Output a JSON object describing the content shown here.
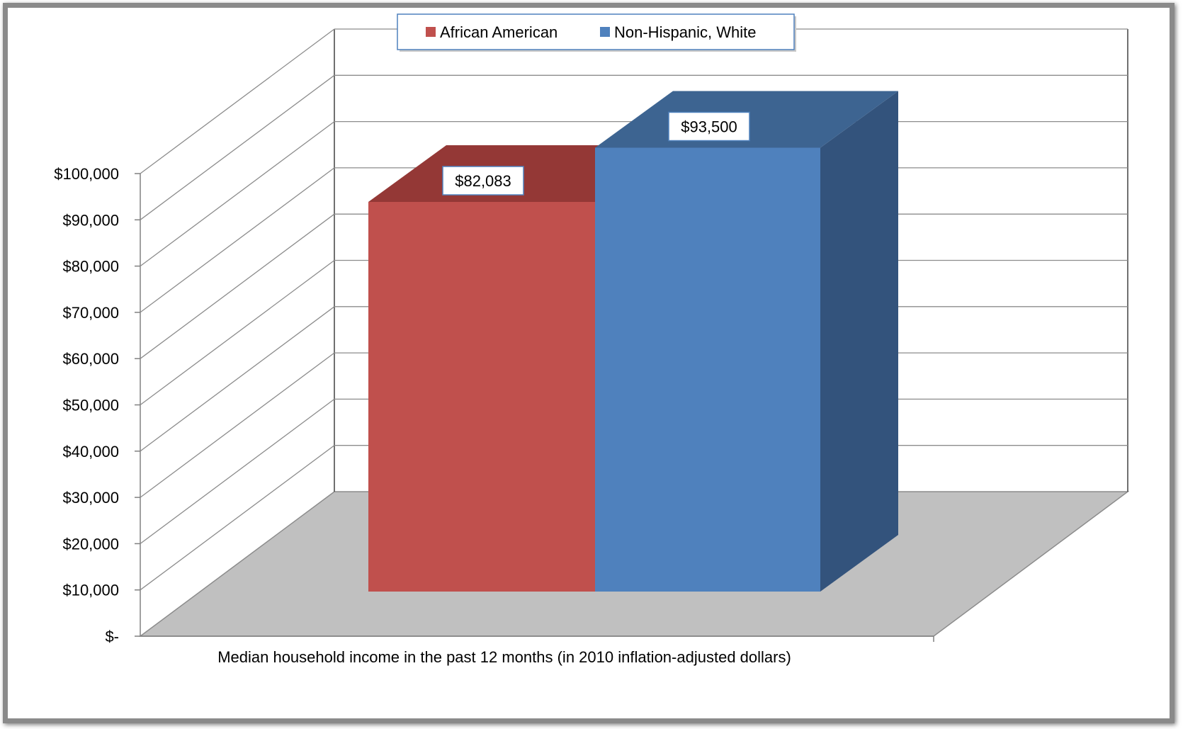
{
  "chart_data": {
    "type": "bar",
    "title": "",
    "xlabel": "Median household income in the past 12 months (in 2010 inflation-adjusted dollars)",
    "ylabel": "",
    "ylim": [
      0,
      100000
    ],
    "yticks": [
      "$-",
      "$10,000",
      "$20,000",
      "$30,000",
      "$40,000",
      "$50,000",
      "$60,000",
      "$70,000",
      "$80,000",
      "$90,000",
      "$100,000"
    ],
    "grid": true,
    "legend_position": "top",
    "categories": [
      "Median household income in the past 12 months (in 2010 inflation-adjusted dollars)"
    ],
    "series": [
      {
        "name": "African American",
        "values": [
          82083
        ],
        "label": "$82,083",
        "color": "#C0504D"
      },
      {
        "name": "Non-Hispanic, White",
        "values": [
          93500
        ],
        "label": "$93,500",
        "color": "#4F81BD"
      }
    ]
  }
}
